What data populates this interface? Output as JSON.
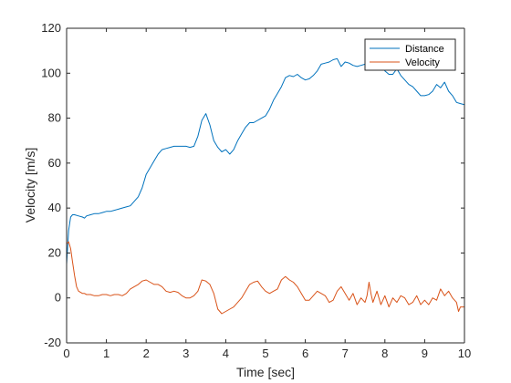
{
  "chart_data": {
    "type": "line",
    "title": "",
    "xlabel": "Time [sec]",
    "ylabel": "Velocity [m/s]",
    "xlim": [
      0,
      10
    ],
    "ylim": [
      -20,
      120
    ],
    "xticks": [
      0,
      1,
      2,
      3,
      4,
      5,
      6,
      7,
      8,
      9,
      10
    ],
    "yticks": [
      -20,
      0,
      20,
      40,
      60,
      80,
      100,
      120
    ],
    "grid": false,
    "legend_position": "top-right",
    "series": [
      {
        "name": "Distance",
        "color": "#0072BD",
        "x": [
          0,
          0.05,
          0.1,
          0.15,
          0.2,
          0.3,
          0.4,
          0.45,
          0.5,
          0.6,
          0.7,
          0.8,
          0.9,
          1.0,
          1.1,
          1.2,
          1.3,
          1.4,
          1.5,
          1.6,
          1.7,
          1.8,
          1.9,
          2.0,
          2.1,
          2.2,
          2.3,
          2.4,
          2.5,
          2.6,
          2.7,
          2.8,
          2.9,
          3.0,
          3.1,
          3.2,
          3.3,
          3.4,
          3.5,
          3.6,
          3.7,
          3.8,
          3.9,
          4.0,
          4.1,
          4.2,
          4.3,
          4.4,
          4.5,
          4.6,
          4.7,
          4.8,
          4.9,
          5.0,
          5.1,
          5.2,
          5.3,
          5.4,
          5.5,
          5.6,
          5.7,
          5.8,
          5.9,
          6.0,
          6.1,
          6.2,
          6.3,
          6.4,
          6.5,
          6.6,
          6.7,
          6.8,
          6.9,
          7.0,
          7.1,
          7.2,
          7.3,
          7.4,
          7.5,
          7.6,
          7.7,
          7.8,
          7.9,
          8.0,
          8.1,
          8.2,
          8.3,
          8.4,
          8.5,
          8.6,
          8.7,
          8.8,
          8.9,
          9.0,
          9.1,
          9.2,
          9.3,
          9.4,
          9.5,
          9.6,
          9.7,
          9.8,
          9.9,
          10.0
        ],
        "y": [
          15,
          30,
          36,
          37,
          37,
          36.5,
          36,
          35.5,
          36.5,
          37,
          37.5,
          37.5,
          38,
          38.5,
          38.5,
          39,
          39.5,
          40,
          40.5,
          41,
          43,
          45,
          49,
          55,
          58,
          61,
          64,
          66,
          66.5,
          67,
          67.5,
          67.5,
          67.5,
          67.5,
          67,
          67.5,
          72,
          79,
          82,
          77,
          70,
          67,
          65,
          66,
          64,
          66,
          70,
          73,
          76,
          78,
          78,
          79,
          80,
          81,
          84,
          88,
          91,
          94,
          98,
          99,
          98.5,
          99.5,
          98,
          97,
          97.5,
          99,
          101,
          104,
          104.5,
          105,
          106,
          106.5,
          103,
          105,
          104.5,
          103.5,
          103,
          103.5,
          104,
          102,
          102,
          101.5,
          104,
          101,
          99.5,
          99.5,
          102,
          99,
          97,
          95,
          94,
          92,
          90,
          90,
          90.5,
          92,
          95,
          93.5,
          96,
          92,
          90,
          87,
          86.5,
          86
        ]
      },
      {
        "name": "Velocity",
        "color": "#D95319",
        "x": [
          0,
          0.05,
          0.1,
          0.15,
          0.2,
          0.25,
          0.3,
          0.35,
          0.4,
          0.45,
          0.5,
          0.6,
          0.7,
          0.8,
          0.9,
          1.0,
          1.1,
          1.2,
          1.3,
          1.4,
          1.5,
          1.6,
          1.7,
          1.8,
          1.9,
          2.0,
          2.1,
          2.2,
          2.3,
          2.4,
          2.5,
          2.6,
          2.7,
          2.8,
          2.9,
          3.0,
          3.1,
          3.2,
          3.3,
          3.4,
          3.5,
          3.6,
          3.7,
          3.8,
          3.9,
          4.0,
          4.1,
          4.2,
          4.3,
          4.4,
          4.5,
          4.6,
          4.7,
          4.8,
          4.9,
          5.0,
          5.1,
          5.2,
          5.3,
          5.4,
          5.5,
          5.6,
          5.7,
          5.8,
          5.9,
          6.0,
          6.1,
          6.2,
          6.3,
          6.4,
          6.5,
          6.6,
          6.7,
          6.8,
          6.9,
          7.0,
          7.1,
          7.2,
          7.3,
          7.4,
          7.5,
          7.55,
          7.6,
          7.65,
          7.7,
          7.8,
          7.9,
          8.0,
          8.1,
          8.2,
          8.3,
          8.4,
          8.5,
          8.6,
          8.7,
          8.8,
          8.9,
          9.0,
          9.1,
          9.2,
          9.3,
          9.4,
          9.5,
          9.6,
          9.7,
          9.8,
          9.85,
          9.9,
          10.0
        ],
        "y": [
          24,
          25,
          22,
          16,
          10,
          5,
          3,
          2.5,
          2,
          2,
          1.5,
          1.5,
          1,
          1,
          1.5,
          1.5,
          1,
          1.5,
          1.5,
          1,
          2,
          4,
          5,
          6,
          7.5,
          8,
          7,
          6,
          6,
          5,
          3,
          2.5,
          3,
          2.5,
          1,
          0,
          0,
          1,
          3,
          8,
          7.5,
          6,
          2,
          -5,
          -7,
          -6,
          -5,
          -4,
          -2,
          0,
          3,
          6,
          7,
          7.5,
          5,
          3,
          2,
          3,
          4,
          8,
          9.5,
          8,
          7,
          5,
          2,
          -1,
          -1,
          1,
          3,
          2,
          1,
          -2,
          -1,
          3,
          5,
          2,
          -1,
          2,
          -3,
          0,
          -2,
          1,
          7,
          2,
          -2,
          3,
          -3,
          1,
          -4,
          0,
          -2,
          1,
          0,
          -3,
          -2,
          1,
          -3,
          -1,
          -3,
          0,
          -1,
          4,
          1,
          3,
          0,
          -2,
          -6,
          -4,
          -4
        ]
      }
    ]
  }
}
